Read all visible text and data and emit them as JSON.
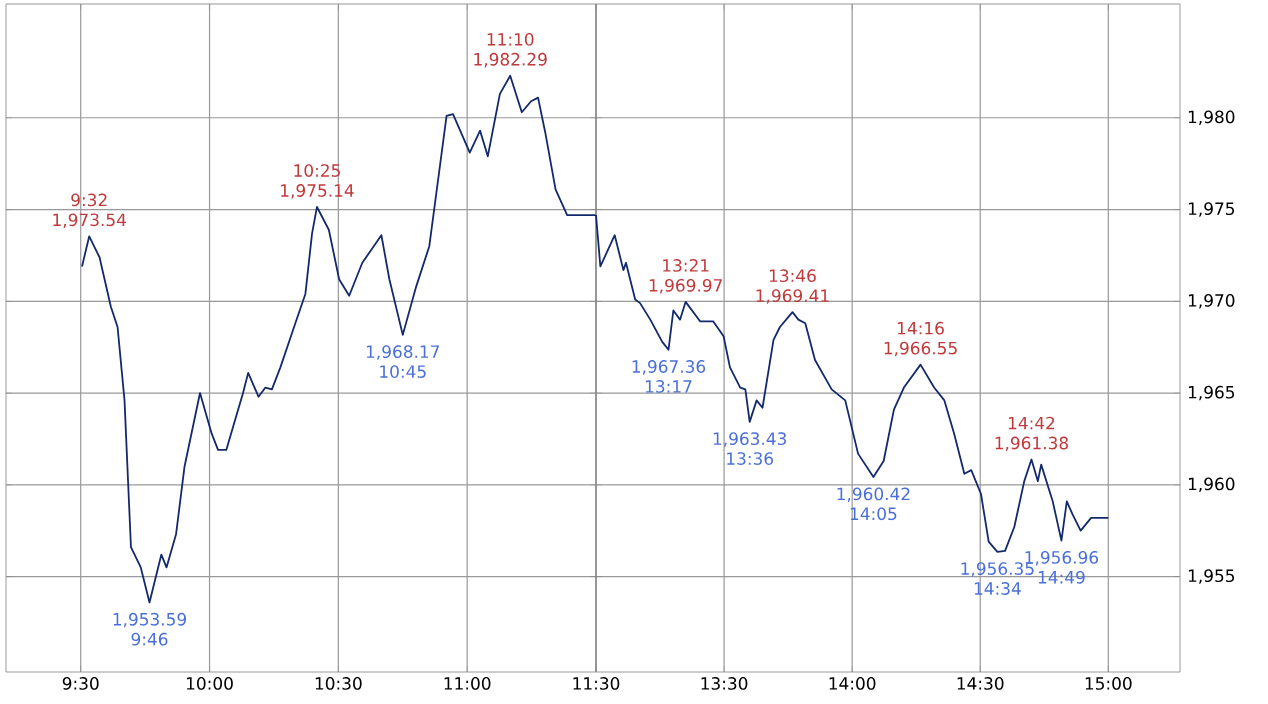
{
  "chart_data": [
    {
      "type": "line",
      "x": [
        9.505,
        9.533,
        9.573,
        9.617,
        9.643,
        9.67,
        9.695,
        9.733,
        9.767,
        9.813,
        9.833,
        9.87,
        9.903,
        9.963,
        10.008,
        10.033,
        10.065,
        10.13,
        10.15,
        10.19,
        10.217,
        10.242,
        10.275,
        10.333,
        10.372,
        10.398,
        10.417,
        10.463,
        10.503,
        10.542,
        10.593,
        10.667,
        10.698,
        10.75,
        10.802,
        10.853,
        10.92,
        10.945,
        11.01,
        11.05,
        11.08,
        11.127,
        11.167,
        11.212,
        11.248,
        11.275,
        11.303,
        11.343,
        11.388,
        11.5
      ],
      "series": [
        {
          "color": "#12296b",
          "values": [
            1971.9,
            1973.54,
            1972.4,
            1969.7,
            1968.6,
            1964.6,
            1956.6,
            1955.5,
            1953.59,
            1956.2,
            1955.5,
            1957.3,
            1961.0,
            1965.0,
            1962.8,
            1961.9,
            1961.9,
            1965.0,
            1966.1,
            1964.8,
            1965.3,
            1965.2,
            1966.4,
            1968.8,
            1970.4,
            1973.7,
            1975.14,
            1973.9,
            1971.2,
            1970.3,
            1972.1,
            1973.6,
            1971.2,
            1968.17,
            1970.8,
            1973.0,
            1980.1,
            1980.2,
            1978.1,
            1979.3,
            1977.9,
            1981.3,
            1982.29,
            1980.3,
            1980.9,
            1981.1,
            1979.2,
            1976.1,
            1974.7,
            1974.7
          ]
        }
      ],
      "xlim": [
        9.21,
        11.5
      ],
      "xticks": [
        {
          "value": 9.5,
          "label": "9:30"
        },
        {
          "value": 10.0,
          "label": "10:00"
        },
        {
          "value": 10.5,
          "label": "10:30"
        },
        {
          "value": 11.0,
          "label": "11:00"
        },
        {
          "value": 11.5,
          "label": "11:30"
        }
      ],
      "ylim": [
        1949.8,
        1986.2
      ],
      "yticks": [
        1955,
        1960,
        1965,
        1970,
        1975,
        1980
      ],
      "grid": true,
      "tick_labels": "x",
      "annotations": [
        {
          "text": "9:32",
          "x": 9.533,
          "y": 1973.54
        },
        {
          "text": "1,973.54",
          "x": 9.533,
          "y": 1973.54
        },
        {
          "text": "1,953.59",
          "x": 9.767,
          "y": 1953.59
        },
        {
          "text": "9:46",
          "x": 9.767,
          "y": 1953.59
        },
        {
          "text": "10:25",
          "x": 10.417,
          "y": 1975.14
        },
        {
          "text": "1,975.14",
          "x": 10.417,
          "y": 1975.14
        },
        {
          "text": "1,968.17",
          "x": 10.75,
          "y": 1968.17
        },
        {
          "text": "10:45",
          "x": 10.75,
          "y": 1968.17
        },
        {
          "text": "11:10",
          "x": 11.167,
          "y": 1982.29
        },
        {
          "text": "1,982.29",
          "x": 11.167,
          "y": 1982.29
        }
      ]
    },
    {
      "type": "line",
      "x": [
        13.0,
        13.017,
        13.073,
        13.107,
        13.117,
        13.153,
        13.172,
        13.212,
        13.258,
        13.283,
        13.302,
        13.328,
        13.35,
        13.407,
        13.458,
        13.498,
        13.523,
        13.563,
        13.583,
        13.6,
        13.627,
        13.65,
        13.693,
        13.718,
        13.767,
        13.79,
        13.817,
        13.855,
        13.92,
        13.973,
        14.023,
        14.083,
        14.123,
        14.163,
        14.202,
        14.267,
        14.32,
        14.36,
        14.398,
        14.438,
        14.465,
        14.503,
        14.533,
        14.567,
        14.597,
        14.633,
        14.672,
        14.7,
        14.725,
        14.738,
        14.783,
        14.817,
        14.838,
        14.86,
        14.892,
        14.933,
        15.0
      ],
      "series": [
        {
          "color": "#12296b",
          "values": [
            1974.7,
            1971.9,
            1973.6,
            1971.7,
            1972.1,
            1970.1,
            1969.9,
            1969.0,
            1967.8,
            1967.36,
            1969.5,
            1969.0,
            1969.97,
            1968.9,
            1968.9,
            1968.1,
            1966.4,
            1965.3,
            1965.2,
            1963.43,
            1964.6,
            1964.2,
            1967.9,
            1968.6,
            1969.41,
            1969.0,
            1968.8,
            1966.8,
            1965.2,
            1964.6,
            1961.7,
            1960.42,
            1961.3,
            1964.1,
            1965.3,
            1966.55,
            1965.3,
            1964.6,
            1962.8,
            1960.6,
            1960.8,
            1959.5,
            1956.9,
            1956.35,
            1956.4,
            1957.7,
            1960.2,
            1961.38,
            1960.2,
            1961.1,
            1959.1,
            1956.96,
            1959.1,
            1958.4,
            1957.5,
            1958.2,
            1958.2
          ]
        }
      ],
      "xlim": [
        13.0,
        15.28
      ],
      "xticks": [
        {
          "value": 13.5,
          "label": "13:30"
        },
        {
          "value": 14.0,
          "label": "14:00"
        },
        {
          "value": 14.5,
          "label": "14:30"
        },
        {
          "value": 15.0,
          "label": "15:00"
        }
      ],
      "ylim": [
        1949.8,
        1986.2
      ],
      "yticks": [
        {
          "value": 1955,
          "label": "1,955"
        },
        {
          "value": 1960,
          "label": "1,960"
        },
        {
          "value": 1965,
          "label": "1,965"
        },
        {
          "value": 1970,
          "label": "1,970"
        },
        {
          "value": 1975,
          "label": "1,975"
        },
        {
          "value": 1980,
          "label": "1,980"
        }
      ],
      "grid": true,
      "annotations": [
        {
          "text": "1,967.36",
          "x": 13.283,
          "y": 1967.36
        },
        {
          "text": "13:17",
          "x": 13.283,
          "y": 1967.36
        },
        {
          "text": "13:21",
          "x": 13.35,
          "y": 1969.97
        },
        {
          "text": "1,969.97",
          "x": 13.35,
          "y": 1969.97
        },
        {
          "text": "1,963.43",
          "x": 13.6,
          "y": 1963.43
        },
        {
          "text": "13:36",
          "x": 13.6,
          "y": 1963.43
        },
        {
          "text": "13:46",
          "x": 13.767,
          "y": 1969.41
        },
        {
          "text": "1,969.41",
          "x": 13.767,
          "y": 1969.41
        },
        {
          "text": "1,960.42",
          "x": 14.083,
          "y": 1960.42
        },
        {
          "text": "14:05",
          "x": 14.083,
          "y": 1960.42
        },
        {
          "text": "14:16",
          "x": 14.267,
          "y": 1966.55
        },
        {
          "text": "1,966.55",
          "x": 14.267,
          "y": 1966.55
        },
        {
          "text": "1,956.35",
          "x": 14.567,
          "y": 1956.35
        },
        {
          "text": "14:34",
          "x": 14.567,
          "y": 1956.35
        },
        {
          "text": "14:42",
          "x": 14.7,
          "y": 1961.38
        },
        {
          "text": "1,961.38",
          "x": 14.7,
          "y": 1961.38
        },
        {
          "text": "1,956.96",
          "x": 14.817,
          "y": 1956.96
        },
        {
          "text": "14:49",
          "x": 14.817,
          "y": 1956.96
        }
      ]
    }
  ]
}
